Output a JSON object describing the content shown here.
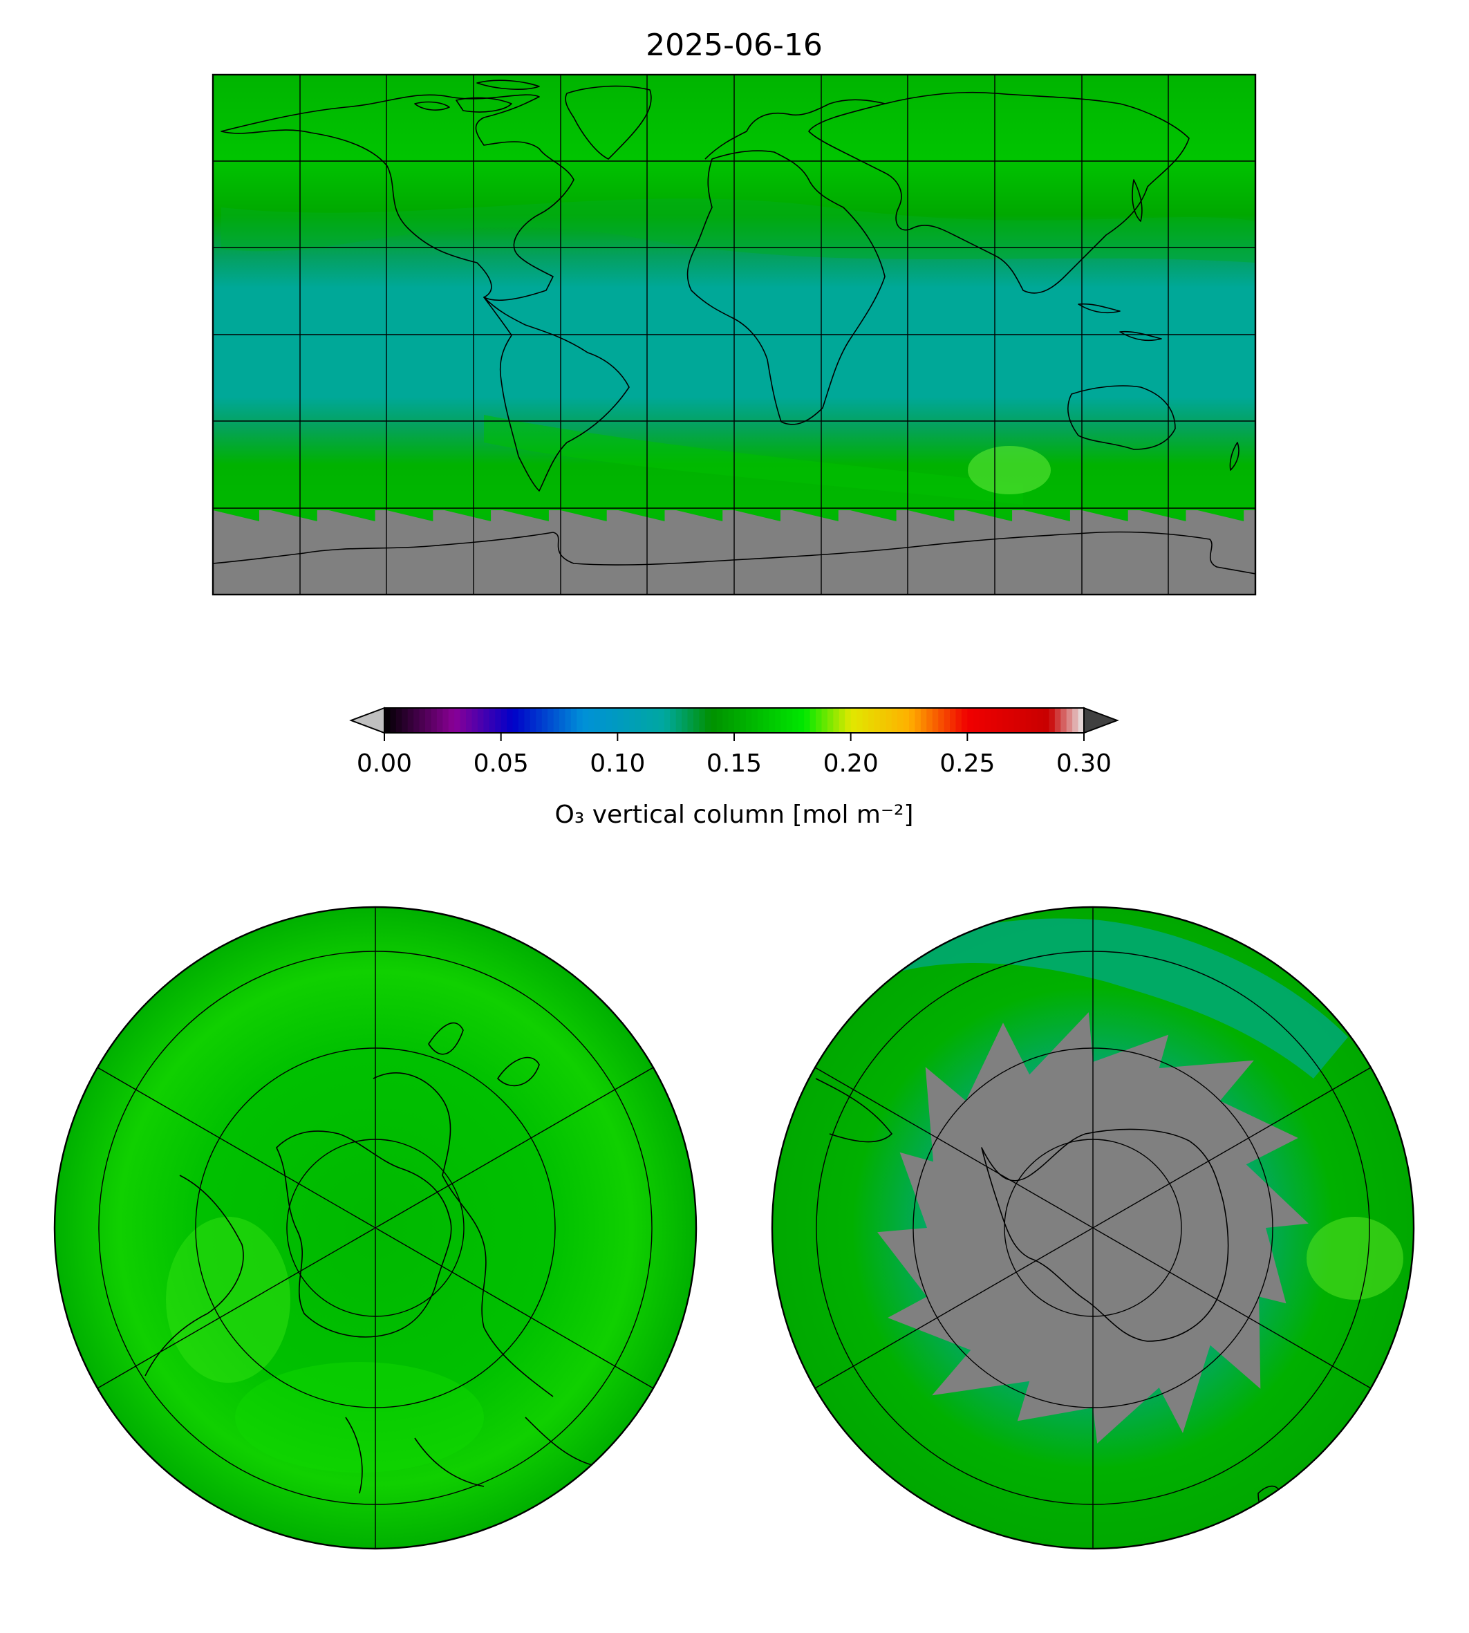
{
  "title": "2025-06-16",
  "colorbar": {
    "label": "O₃ vertical column [mol m⁻²]",
    "ticks": [
      "0.00",
      "0.05",
      "0.10",
      "0.15",
      "0.20",
      "0.25",
      "0.30"
    ],
    "range": [
      0.0,
      0.3
    ],
    "extend": "both",
    "under_color": "#c0c0c0",
    "over_color": "#404040",
    "stops": [
      {
        "v": 0.0,
        "c": "#000000"
      },
      {
        "v": 0.03,
        "c": "#8a0096"
      },
      {
        "v": 0.055,
        "c": "#0000c8"
      },
      {
        "v": 0.085,
        "c": "#0090d8"
      },
      {
        "v": 0.12,
        "c": "#00a8a0"
      },
      {
        "v": 0.14,
        "c": "#009000"
      },
      {
        "v": 0.18,
        "c": "#00e800"
      },
      {
        "v": 0.2,
        "c": "#e0e800"
      },
      {
        "v": 0.225,
        "c": "#ffb000"
      },
      {
        "v": 0.25,
        "c": "#f00000"
      },
      {
        "v": 0.285,
        "c": "#c80000"
      },
      {
        "v": 0.3,
        "c": "#e8e8e8"
      }
    ]
  },
  "colors": {
    "no_data": "#808080",
    "tropics": "#00a898",
    "midlat": "#00b000",
    "high": "#00c800"
  },
  "panels": [
    {
      "projection": "plate-carree",
      "region": "global"
    },
    {
      "projection": "orthographic",
      "region": "north-pole"
    },
    {
      "projection": "orthographic",
      "region": "south-pole"
    }
  ]
}
